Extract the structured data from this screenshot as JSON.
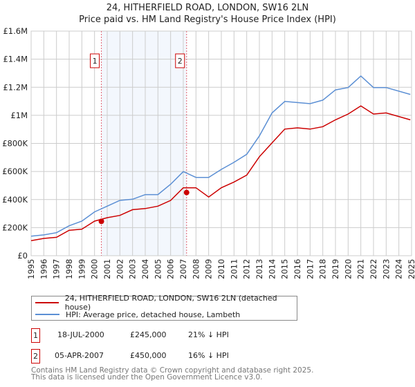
{
  "title": "24, HITHERFIELD ROAD, LONDON, SW16 2LN",
  "subtitle": "Price paid vs. HM Land Registry's House Price Index (HPI)",
  "chart_data": {
    "type": "line",
    "title": "24, HITHERFIELD ROAD, LONDON, SW16 2LN",
    "subtitle": "Price paid vs. HM Land Registry's House Price Index (HPI)",
    "xlim": [
      1995,
      2025
    ],
    "ylim": [
      0,
      1600000
    ],
    "grid": true,
    "x_ticks": [
      "1995",
      "1996",
      "1997",
      "1998",
      "1999",
      "2000",
      "2001",
      "2002",
      "2003",
      "2004",
      "2005",
      "2006",
      "2007",
      "2008",
      "2009",
      "2010",
      "2011",
      "2012",
      "2013",
      "2014",
      "2015",
      "2016",
      "2017",
      "2018",
      "2019",
      "2020",
      "2021",
      "2022",
      "2023",
      "2024",
      "2025"
    ],
    "y_ticks": [
      {
        "v": 0,
        "label": "£0"
      },
      {
        "v": 200000,
        "label": "£200K"
      },
      {
        "v": 400000,
        "label": "£400K"
      },
      {
        "v": 600000,
        "label": "£600K"
      },
      {
        "v": 800000,
        "label": "£800K"
      },
      {
        "v": 1000000,
        "label": "£1M"
      },
      {
        "v": 1200000,
        "label": "£1.2M"
      },
      {
        "v": 1400000,
        "label": "£1.4M"
      },
      {
        "v": 1600000,
        "label": "£1.6M"
      }
    ],
    "x": [
      1995,
      1996,
      1997,
      1998,
      1999,
      2000,
      2001,
      2002,
      2003,
      2004,
      2005,
      2006,
      2007,
      2008,
      2009,
      2010,
      2011,
      2012,
      2013,
      2014,
      2015,
      2016,
      2017,
      2018,
      2019,
      2020,
      2021,
      2022,
      2023,
      2024.9
    ],
    "series": [
      {
        "name": "24, HITHERFIELD ROAD, LONDON, SW16 2LN (detached house)",
        "color": "#cc0000",
        "values": [
          107000,
          123000,
          131000,
          181000,
          189000,
          246000,
          271000,
          287000,
          328000,
          336000,
          353000,
          394000,
          484000,
          484000,
          418000,
          484000,
          525000,
          574000,
          705000,
          804000,
          902000,
          911000,
          902000,
          919000,
          968000,
          1009000,
          1067000,
          1009000,
          1017000,
          968000
        ]
      },
      {
        "name": "HPI: Average price, detached house, Lambeth",
        "color": "#5b8fd4",
        "values": [
          139000,
          148000,
          164000,
          213000,
          246000,
          312000,
          353000,
          394000,
          402000,
          435000,
          435000,
          509000,
          599000,
          558000,
          558000,
          615000,
          665000,
          722000,
          853000,
          1017000,
          1099000,
          1091000,
          1083000,
          1108000,
          1181000,
          1198000,
          1280000,
          1198000,
          1198000,
          1149000
        ]
      }
    ],
    "sales": [
      {
        "id": "1",
        "x": 2000.54,
        "y": 245000
      },
      {
        "id": "2",
        "x": 2007.26,
        "y": 450000
      }
    ],
    "shade": [
      2000.54,
      2007.26
    ],
    "legend_position": "bottom"
  },
  "legend": [
    {
      "label": "24, HITHERFIELD ROAD, LONDON, SW16 2LN (detached house)",
      "color": "#cc0000"
    },
    {
      "label": "HPI: Average price, detached house, Lambeth",
      "color": "#5b8fd4"
    }
  ],
  "transactions": [
    {
      "id": "1",
      "date": "18-JUL-2000",
      "price": "£245,000",
      "hpi": "21% ↓ HPI"
    },
    {
      "id": "2",
      "date": "05-APR-2007",
      "price": "£450,000",
      "hpi": "16% ↓ HPI"
    }
  ],
  "footer": [
    "Contains HM Land Registry data © Crown copyright and database right 2025.",
    "This data is licensed under the Open Government Licence v3.0."
  ]
}
